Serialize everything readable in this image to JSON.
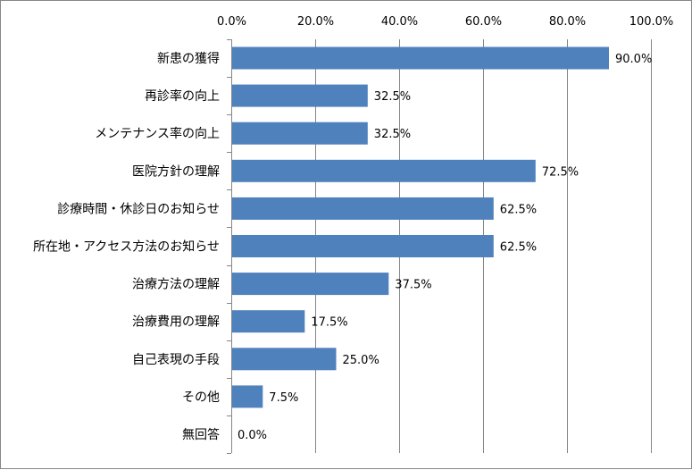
{
  "chart_data": {
    "type": "bar",
    "orientation": "horizontal",
    "categories": [
      "新患の獲得",
      "再診率の向上",
      "メンテナンス率の向上",
      "医院方針の理解",
      "診療時間・休診日のお知らせ",
      "所在地・アクセス方法のお知らせ",
      "治療方法の理解",
      "治療費用の理解",
      "自己表現の手段",
      "その他",
      "無回答"
    ],
    "values": [
      90.0,
      32.5,
      32.5,
      72.5,
      62.5,
      62.5,
      37.5,
      17.5,
      25.0,
      7.5,
      0.0
    ],
    "data_labels": [
      "90.0%",
      "32.5%",
      "32.5%",
      "72.5%",
      "62.5%",
      "62.5%",
      "37.5%",
      "17.5%",
      "25.0%",
      "7.5%",
      "0.0%"
    ],
    "xticks": [
      0,
      20,
      40,
      60,
      80,
      100
    ],
    "xtick_labels": [
      "0.0%",
      "20.0%",
      "40.0%",
      "60.0%",
      "80.0%",
      "100.0%"
    ],
    "xlim": [
      0,
      100
    ],
    "x_axis_position": "top",
    "grid": "vertical",
    "legend": false,
    "colors": {
      "bar": "#4f81bd",
      "grid": "#868686"
    }
  }
}
